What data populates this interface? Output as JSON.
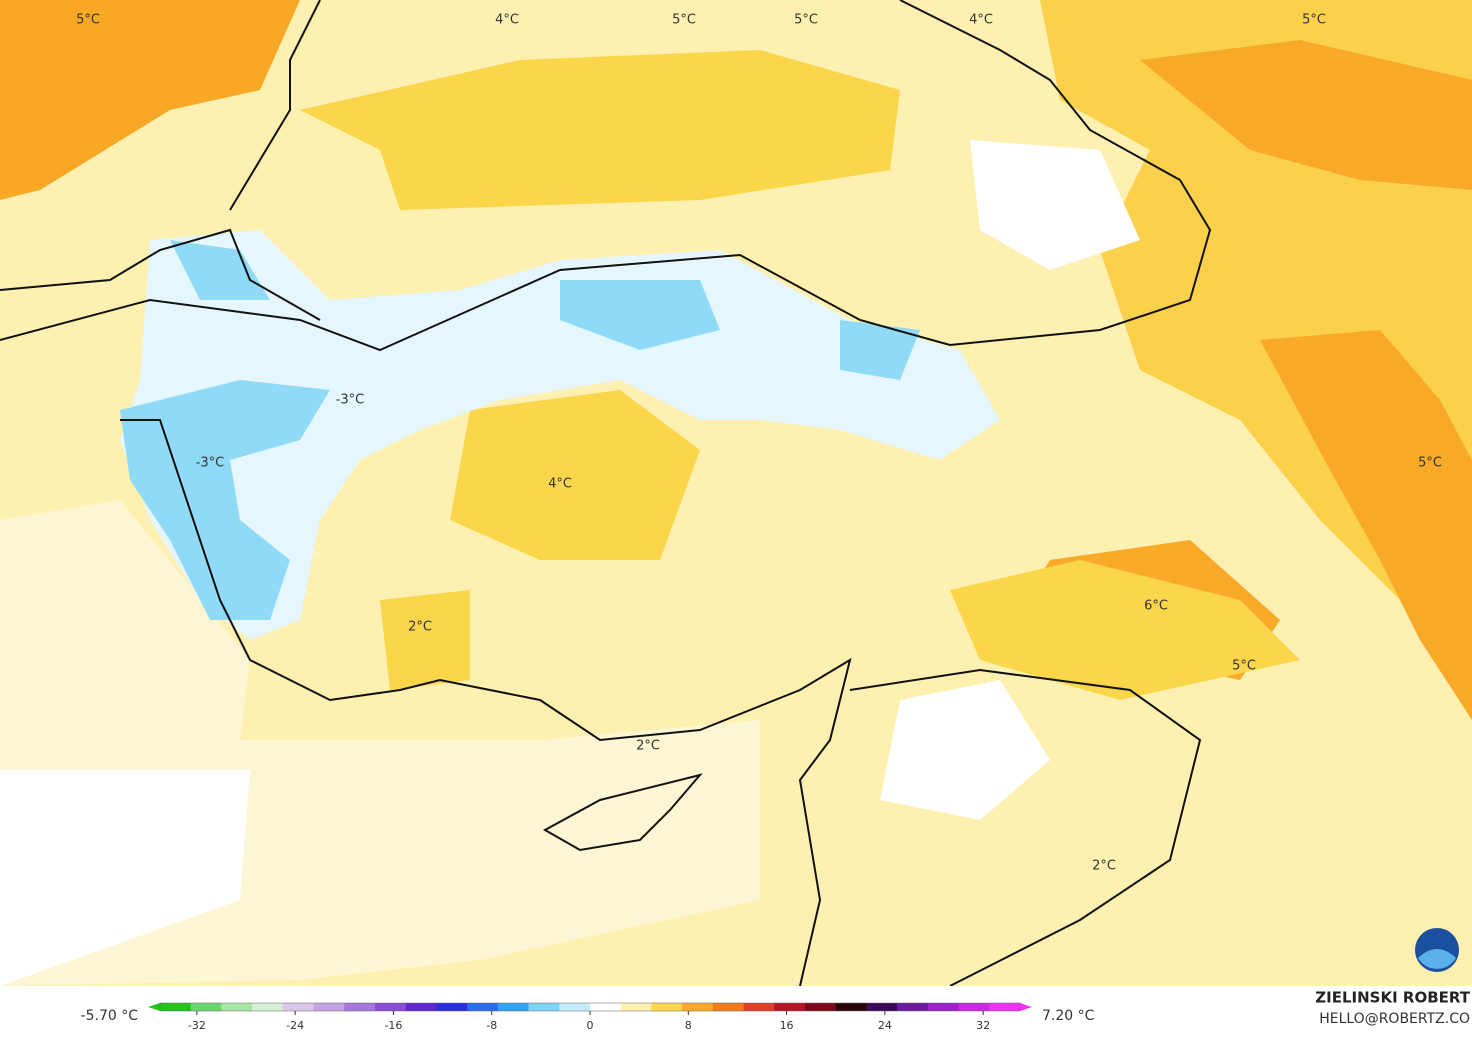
{
  "map_labels": [
    "5°C",
    "4°C",
    "5°C",
    "5°C",
    "4°C",
    "5°C",
    "-3°C",
    "-3°C",
    "4°C",
    "2°C",
    "2°C",
    "6°C",
    "5°C",
    "5°C",
    "2°C"
  ],
  "colorbar": {
    "min_label": "-5.70 °C",
    "max_label": "7.20 °C",
    "lim": [
      -35,
      35
    ],
    "ticks": [
      -32,
      -24,
      -16,
      -8,
      0,
      8,
      16,
      24,
      32
    ],
    "colors": [
      "#1fc41f",
      "#6bd66b",
      "#a8e6a8",
      "#d4efd4",
      "#d9c7ea",
      "#c3a3e3",
      "#a477d8",
      "#8a4ed1",
      "#5f27d6",
      "#2a2ee0",
      "#2d6cf0",
      "#33a4f5",
      "#7fd4f6",
      "#c4eefc",
      "#ffffff",
      "#fef0b0",
      "#fbd54a",
      "#f7a928",
      "#f07b1e",
      "#e0402a",
      "#b81226",
      "#7a0a1a",
      "#2a0508",
      "#3a0a5a",
      "#6a1a9a",
      "#9a22c8",
      "#cc2ae0",
      "#f032f0"
    ]
  },
  "author": "ZIELINSKI ROBERT",
  "email": "HELLO@ROBERTZ.CO"
}
